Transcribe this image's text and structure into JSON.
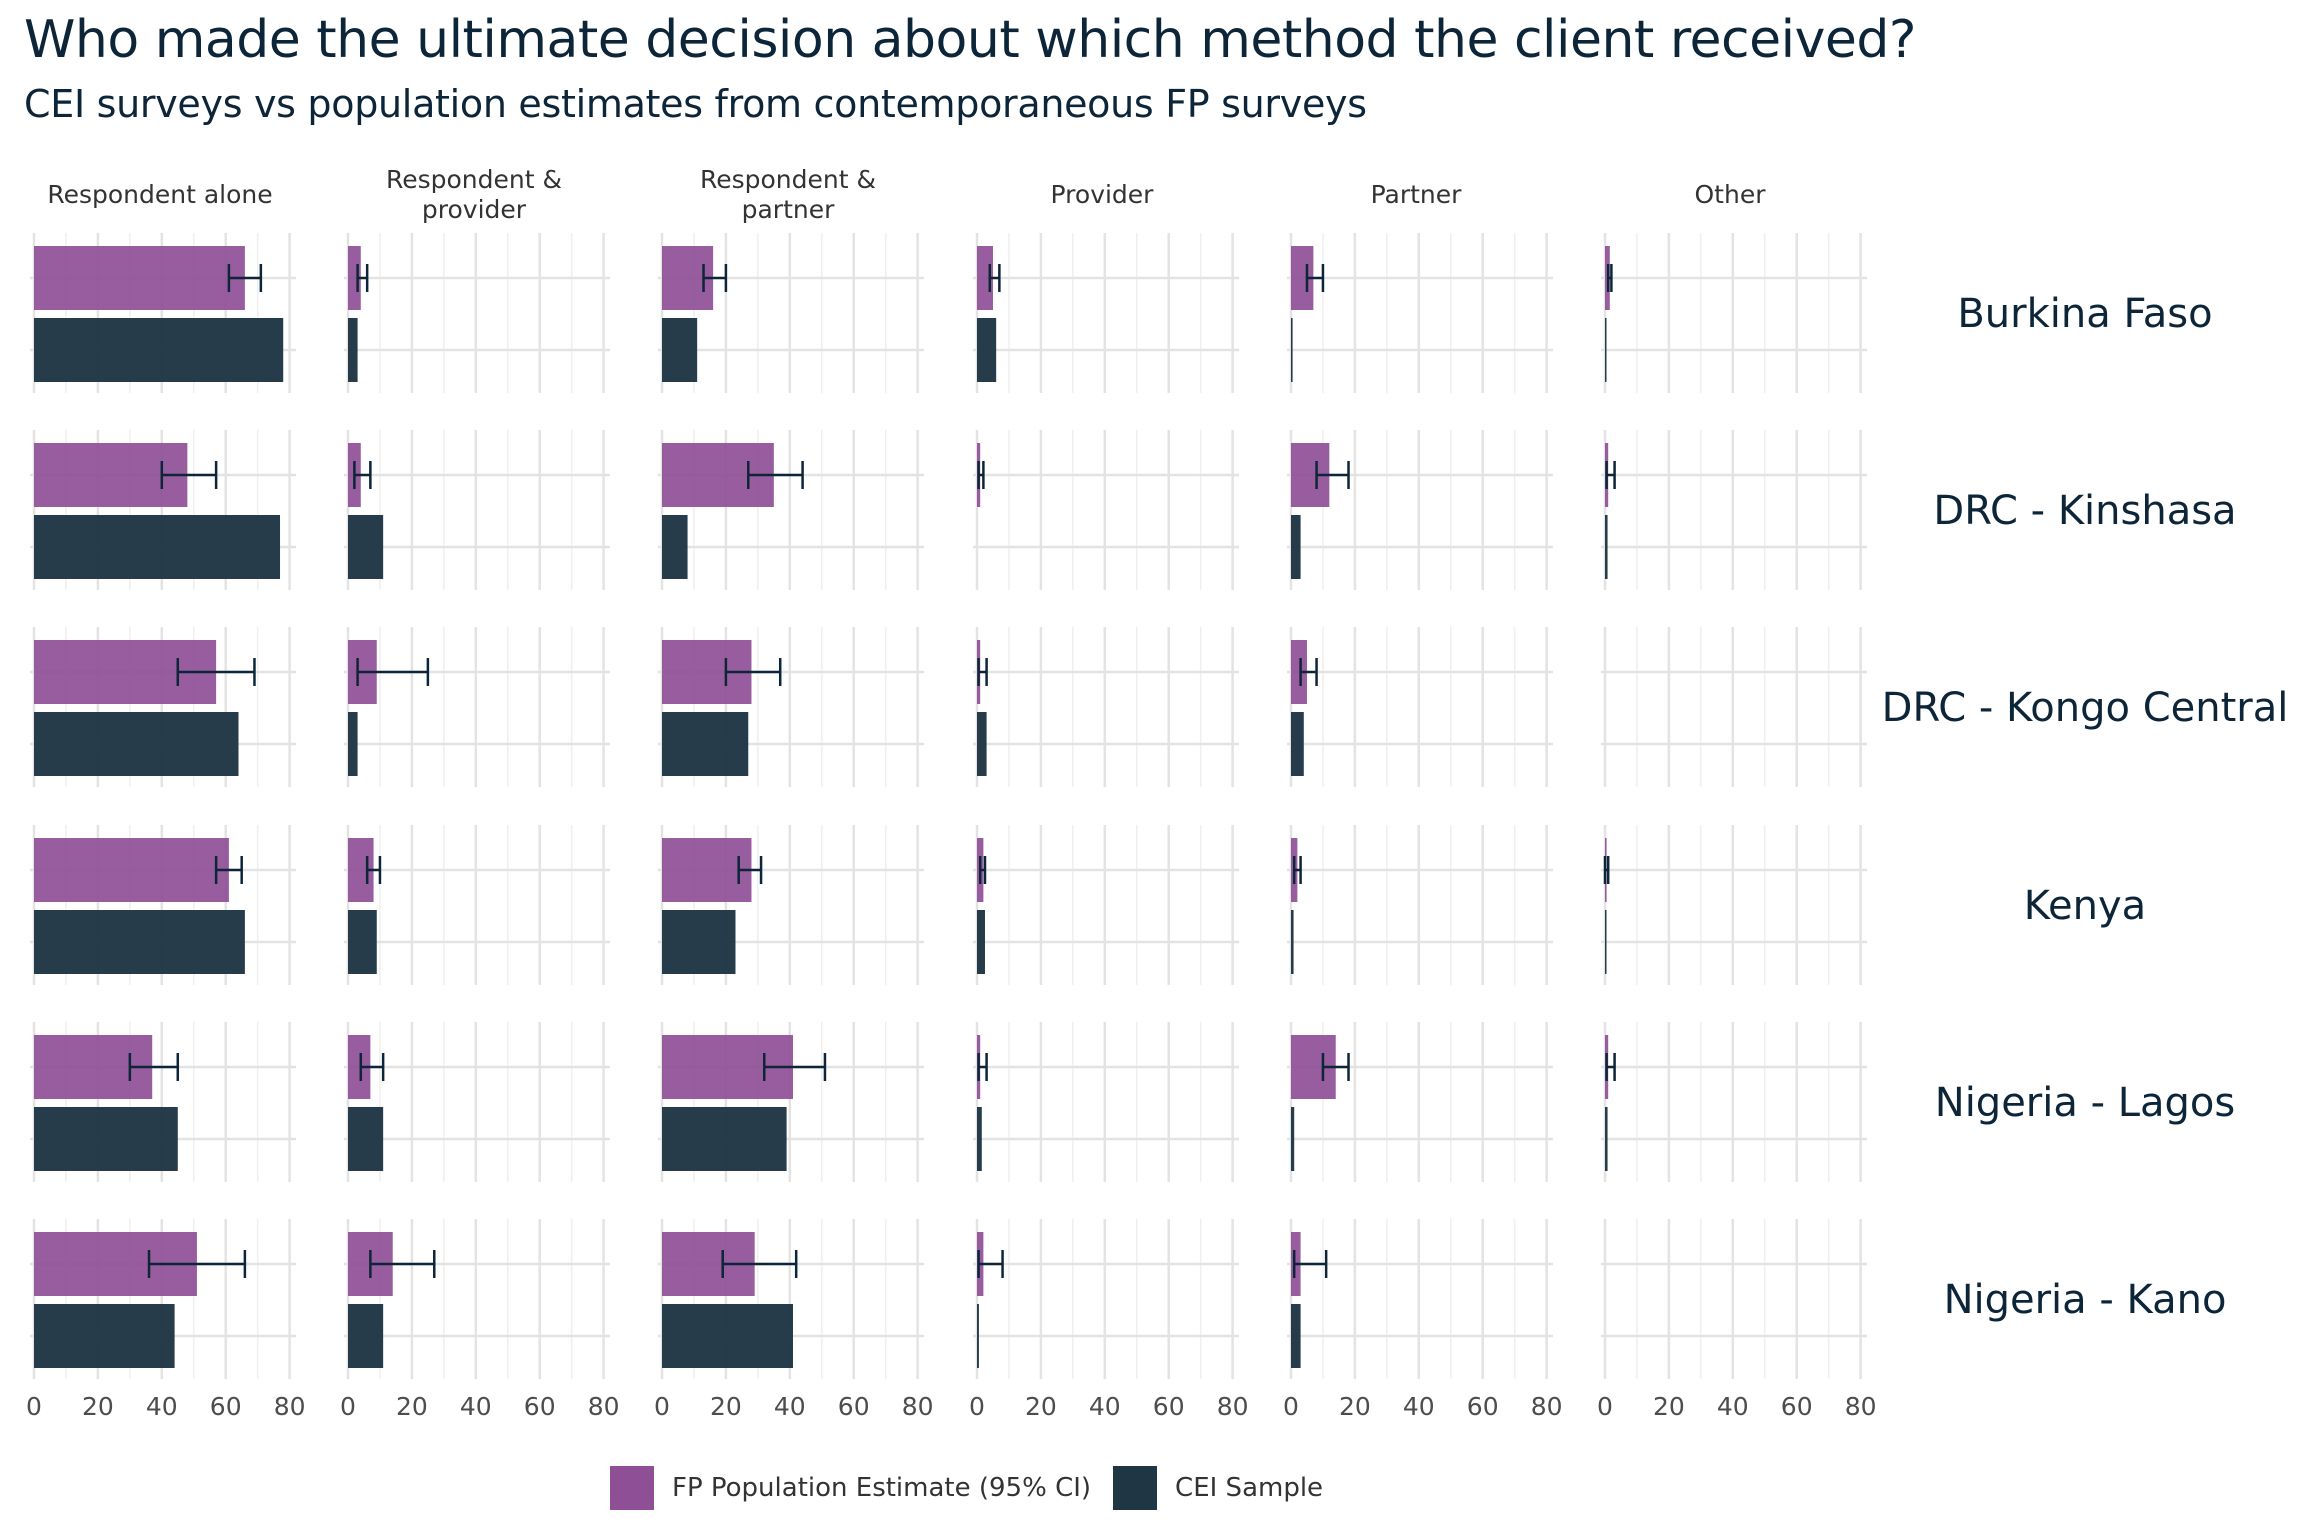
{
  "title": "Who made the ultimate decision about which method the client received?",
  "subtitle": "CEI surveys vs population estimates from contemporaneous FP surveys",
  "legend": [
    {
      "label": "FP Population Estimate (95% CI)",
      "color": "#8e4f97"
    },
    {
      "label": "CEI Sample",
      "color": "#1f3644"
    }
  ],
  "chart_data": {
    "type": "bar",
    "orientation": "horizontal",
    "facet_columns": [
      "Respondent alone",
      "Respondent & provider",
      "Respondent & partner",
      "Provider",
      "Partner",
      "Other"
    ],
    "facet_rows": [
      "Burkina Faso",
      "DRC - Kinshasa",
      "DRC - Kongo Central",
      "Kenya",
      "Nigeria - Lagos",
      "Nigeria - Kano"
    ],
    "x_ticks": [
      0,
      20,
      40,
      60,
      80
    ],
    "xlim": [
      0,
      82
    ],
    "grid": true,
    "legend_position": "bottom",
    "series": [
      {
        "name": "FP Population Estimate (95% CI)",
        "color": "#8e4f97",
        "values": [
          [
            66,
            4,
            16,
            5,
            7,
            1.5
          ],
          [
            48,
            4,
            35,
            1,
            12,
            1
          ],
          [
            57,
            9,
            28,
            1,
            5,
            null
          ],
          [
            61,
            8,
            28,
            2,
            2,
            0.5
          ],
          [
            37,
            7,
            41,
            1,
            14,
            1
          ],
          [
            51,
            14,
            29,
            2,
            3,
            null
          ]
        ],
        "ci_low": [
          [
            61,
            3,
            13,
            4,
            5,
            1
          ],
          [
            40,
            2,
            27,
            0.5,
            8,
            0.5
          ],
          [
            45,
            3,
            20,
            0.5,
            3,
            null
          ],
          [
            57,
            6,
            24,
            1,
            1,
            0
          ],
          [
            30,
            4,
            32,
            0.5,
            10,
            0.5
          ],
          [
            36,
            7,
            19,
            0.5,
            1,
            null
          ]
        ],
        "ci_high": [
          [
            71,
            6,
            20,
            7,
            10,
            2
          ],
          [
            57,
            7,
            44,
            2,
            18,
            3
          ],
          [
            69,
            25,
            37,
            3,
            8,
            null
          ],
          [
            65,
            10,
            31,
            2.5,
            3,
            1
          ],
          [
            45,
            11,
            51,
            3,
            18,
            3
          ],
          [
            66,
            27,
            42,
            8,
            11,
            null
          ]
        ]
      },
      {
        "name": "CEI Sample",
        "color": "#1f3644",
        "values": [
          [
            78,
            3,
            11,
            6,
            0.5,
            0.3
          ],
          [
            77,
            11,
            8,
            null,
            3,
            0.8
          ],
          [
            64,
            3,
            27,
            3,
            4,
            null
          ],
          [
            66,
            9,
            23,
            2.5,
            0.8,
            0.3
          ],
          [
            45,
            11,
            39,
            1.5,
            1,
            0.8
          ],
          [
            44,
            11,
            41,
            0.6,
            3,
            null
          ]
        ]
      }
    ]
  }
}
